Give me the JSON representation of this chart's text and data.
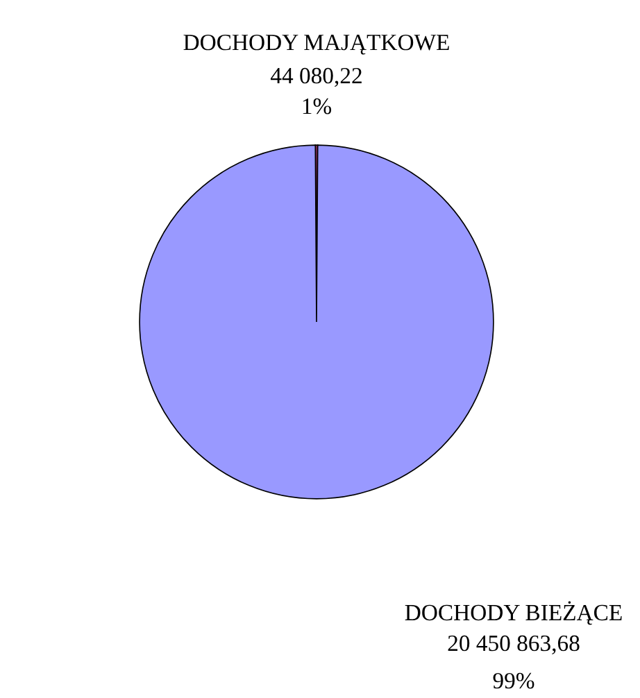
{
  "chart_data": {
    "type": "pie",
    "categories": [
      "DOCHODY MAJĄTKOWE",
      "DOCHODY BIEŻĄCE"
    ],
    "values": [
      44080.22,
      20450863.68
    ],
    "colors": [
      "#993366",
      "#9999ff"
    ],
    "value_labels": [
      "44 080,22",
      "20 450 863,68"
    ],
    "annotations": [
      "1%",
      "99%"
    ],
    "legend": false
  }
}
